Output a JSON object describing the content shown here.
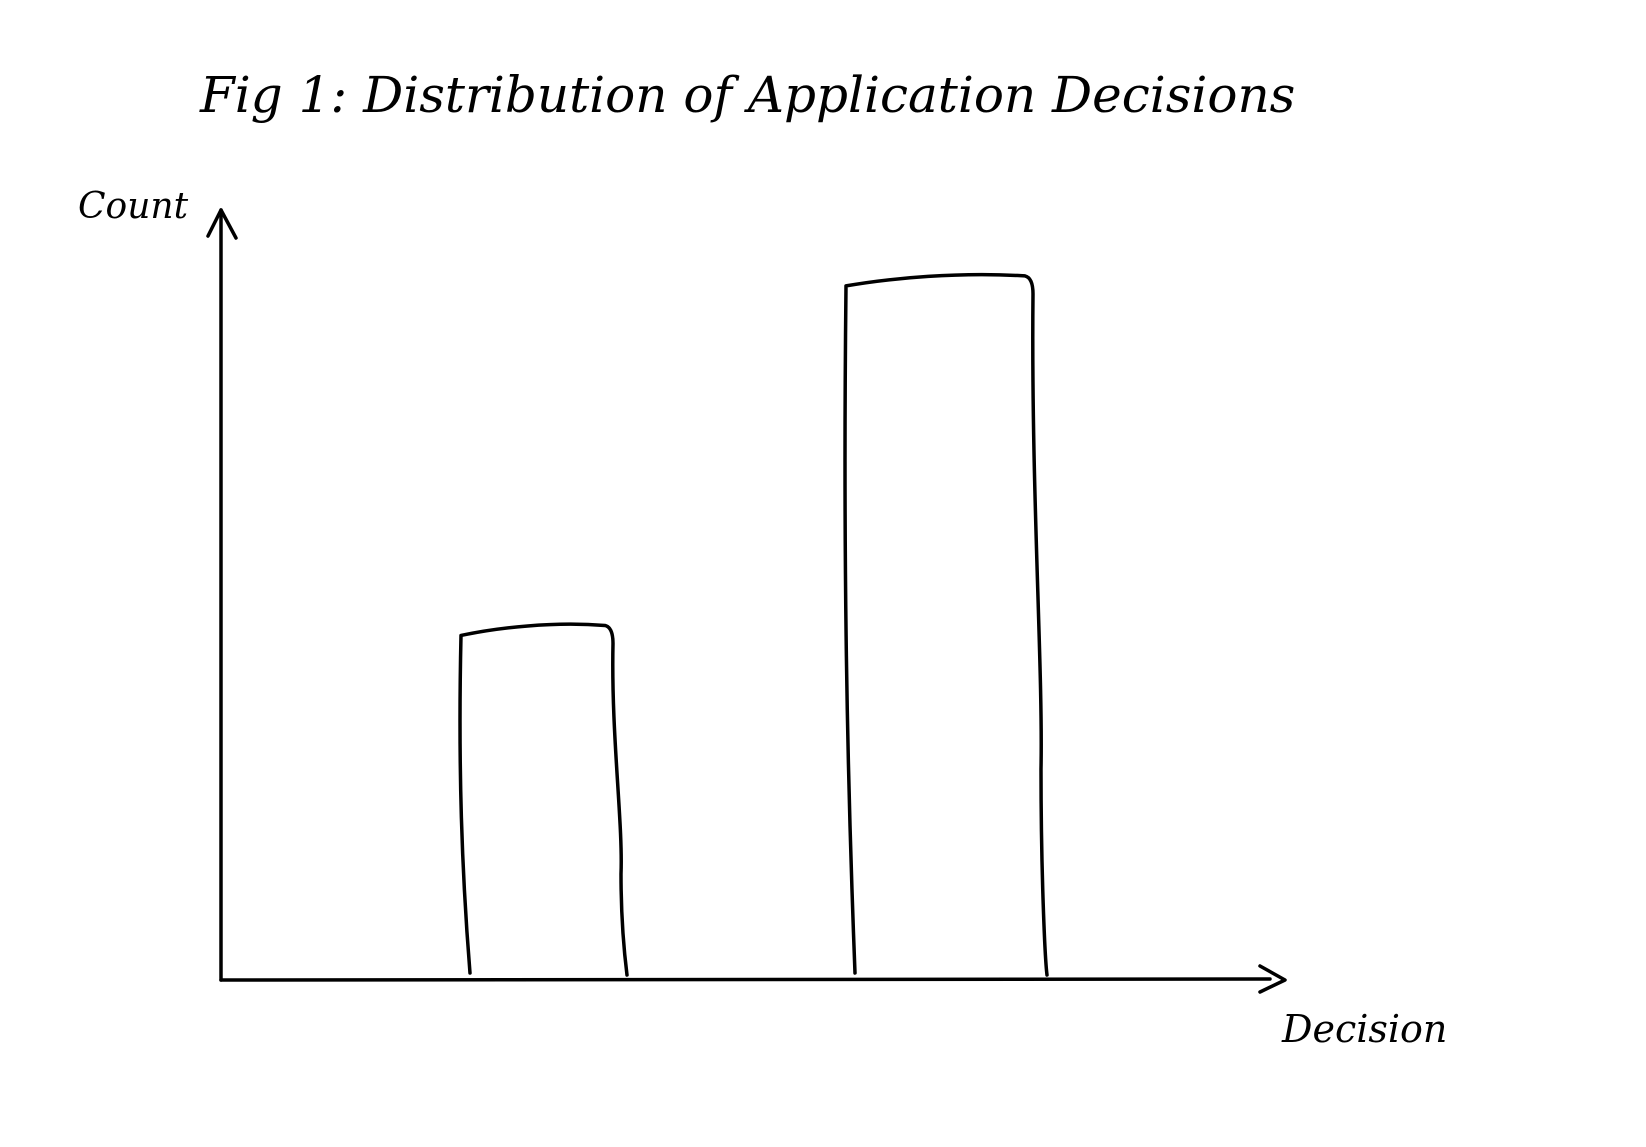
{
  "chart_data": {
    "type": "bar",
    "title": "Fig 1: Distribution of Application Decisions",
    "xlabel": "Decision",
    "ylabel": "Count",
    "categories": [
      "",
      ""
    ],
    "values": [
      5,
      10
    ],
    "ylim": [
      0,
      11
    ],
    "grid": false,
    "legend": "none",
    "style": "hand-drawn sketch",
    "color": "#000000"
  }
}
